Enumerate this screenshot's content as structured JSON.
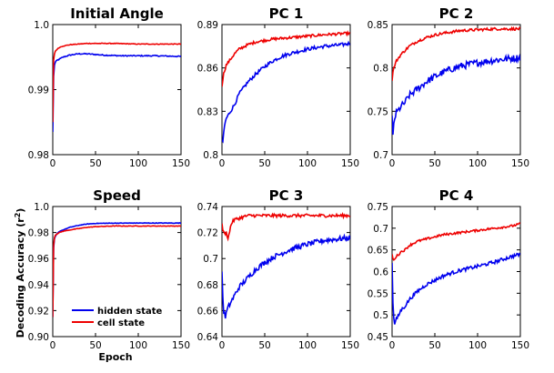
{
  "figure": {
    "ylabel": "Decoding Accuracy (r",
    "ylabel_sup": "2",
    "ylabel_end": ")",
    "xlabel": "Epoch"
  },
  "legend": {
    "placement": "lower-left of Speed panel",
    "entries": [
      {
        "label": "hidden state",
        "color": "#0000ee"
      },
      {
        "label": "cell state",
        "color": "#ee0000"
      }
    ]
  },
  "chart_data": [
    {
      "type": "line",
      "title": "Initial Angle",
      "xlim": [
        0,
        150
      ],
      "ylim": [
        0.98,
        1.0
      ],
      "xticks": [
        0,
        50,
        100,
        150
      ],
      "yticks": [
        0.98,
        0.99,
        1.0
      ],
      "yticklabels": [
        "0.98",
        "0.99",
        "1.0"
      ],
      "series": [
        {
          "name": "hidden state",
          "color": "#0000ee",
          "noise": 8e-05,
          "x": [
            0,
            1,
            2,
            3,
            5,
            8,
            12,
            20,
            30,
            40,
            50,
            60,
            80,
            100,
            120,
            150
          ],
          "y": [
            0.9835,
            0.992,
            0.9938,
            0.9942,
            0.9945,
            0.9947,
            0.995,
            0.9953,
            0.9955,
            0.9955,
            0.9954,
            0.9953,
            0.9952,
            0.9952,
            0.9952,
            0.9951
          ]
        },
        {
          "name": "cell state",
          "color": "#ee0000",
          "noise": 5e-05,
          "x": [
            0,
            1,
            2,
            3,
            5,
            8,
            12,
            20,
            30,
            40,
            50,
            70,
            100,
            150
          ],
          "y": [
            0.985,
            0.9945,
            0.9955,
            0.9959,
            0.9962,
            0.9965,
            0.9967,
            0.9969,
            0.997,
            0.9971,
            0.9971,
            0.9971,
            0.997,
            0.997
          ]
        }
      ]
    },
    {
      "type": "line",
      "title": "PC 1",
      "xlim": [
        0,
        150
      ],
      "ylim": [
        0.8,
        0.89
      ],
      "xticks": [
        0,
        50,
        100,
        150
      ],
      "yticks": [
        0.8,
        0.83,
        0.86,
        0.89
      ],
      "yticklabels": [
        "0.8",
        "0.83",
        "0.86",
        "0.89"
      ],
      "series": [
        {
          "name": "hidden state",
          "color": "#0000ee",
          "noise": 0.0012,
          "x": [
            0,
            1,
            2,
            3,
            5,
            8,
            10,
            15,
            20,
            30,
            40,
            50,
            60,
            70,
            80,
            100,
            120,
            140,
            150
          ],
          "y": [
            0.81,
            0.808,
            0.815,
            0.82,
            0.825,
            0.828,
            0.83,
            0.835,
            0.842,
            0.85,
            0.856,
            0.861,
            0.865,
            0.868,
            0.87,
            0.873,
            0.875,
            0.876,
            0.877
          ]
        },
        {
          "name": "cell state",
          "color": "#ee0000",
          "noise": 0.0009,
          "x": [
            0,
            1,
            2,
            5,
            10,
            15,
            20,
            30,
            40,
            50,
            60,
            80,
            100,
            120,
            150
          ],
          "y": [
            0.847,
            0.852,
            0.856,
            0.862,
            0.866,
            0.87,
            0.873,
            0.876,
            0.878,
            0.879,
            0.88,
            0.881,
            0.882,
            0.883,
            0.884
          ]
        }
      ]
    },
    {
      "type": "line",
      "title": "PC 2",
      "xlim": [
        0,
        150
      ],
      "ylim": [
        0.7,
        0.85
      ],
      "xticks": [
        0,
        50,
        100,
        150
      ],
      "yticks": [
        0.7,
        0.75,
        0.8,
        0.85
      ],
      "yticklabels": [
        "0.7",
        "0.75",
        "0.8",
        "0.85"
      ],
      "series": [
        {
          "name": "hidden state",
          "color": "#0000ee",
          "noise": 0.004,
          "x": [
            0,
            1,
            2,
            3,
            5,
            8,
            10,
            15,
            20,
            30,
            40,
            50,
            60,
            70,
            80,
            100,
            120,
            140,
            150
          ],
          "y": [
            0.745,
            0.72,
            0.735,
            0.742,
            0.748,
            0.752,
            0.755,
            0.76,
            0.768,
            0.776,
            0.784,
            0.79,
            0.795,
            0.799,
            0.802,
            0.806,
            0.809,
            0.811,
            0.812
          ]
        },
        {
          "name": "cell state",
          "color": "#ee0000",
          "noise": 0.0015,
          "x": [
            0,
            1,
            2,
            5,
            10,
            15,
            20,
            30,
            40,
            50,
            60,
            80,
            100,
            120,
            150
          ],
          "y": [
            0.785,
            0.795,
            0.8,
            0.808,
            0.815,
            0.82,
            0.825,
            0.831,
            0.835,
            0.838,
            0.84,
            0.843,
            0.844,
            0.845,
            0.845
          ]
        }
      ]
    },
    {
      "type": "line",
      "title": "Speed",
      "xlim": [
        0,
        150
      ],
      "ylim": [
        0.9,
        1.0
      ],
      "xticks": [
        0,
        50,
        100,
        150
      ],
      "yticks": [
        0.9,
        0.92,
        0.94,
        0.96,
        0.98,
        1.0
      ],
      "yticklabels": [
        "0.90",
        "0.92",
        "0.94",
        "0.96",
        "0.98",
        "1.0"
      ],
      "series": [
        {
          "name": "hidden state",
          "color": "#0000ee",
          "noise": 0.0002,
          "x": [
            0,
            1,
            2,
            3,
            5,
            8,
            12,
            20,
            30,
            40,
            50,
            70,
            100,
            150
          ],
          "y": [
            0.915,
            0.968,
            0.975,
            0.977,
            0.979,
            0.981,
            0.982,
            0.984,
            0.9855,
            0.9865,
            0.987,
            0.9872,
            0.9873,
            0.9873
          ]
        },
        {
          "name": "cell state",
          "color": "#ee0000",
          "noise": 0.0002,
          "x": [
            0,
            1,
            2,
            3,
            5,
            8,
            12,
            20,
            30,
            40,
            50,
            70,
            100,
            150
          ],
          "y": [
            0.915,
            0.97,
            0.976,
            0.978,
            0.979,
            0.98,
            0.981,
            0.982,
            0.983,
            0.984,
            0.9845,
            0.985,
            0.985,
            0.985
          ]
        }
      ]
    },
    {
      "type": "line",
      "title": "PC 3",
      "xlim": [
        0,
        150
      ],
      "ylim": [
        0.64,
        0.74
      ],
      "xticks": [
        0,
        50,
        100,
        150
      ],
      "yticks": [
        0.64,
        0.66,
        0.68,
        0.7,
        0.72,
        0.74
      ],
      "yticklabels": [
        "0.64",
        "0.66",
        "0.68",
        "0.7",
        "0.72",
        "0.74"
      ],
      "series": [
        {
          "name": "hidden state",
          "color": "#0000ee",
          "noise": 0.002,
          "x": [
            0,
            1,
            2,
            3,
            4,
            5,
            7,
            10,
            15,
            20,
            30,
            40,
            50,
            60,
            80,
            100,
            120,
            150
          ],
          "y": [
            0.69,
            0.67,
            0.66,
            0.657,
            0.655,
            0.658,
            0.662,
            0.666,
            0.672,
            0.678,
            0.685,
            0.692,
            0.697,
            0.701,
            0.707,
            0.711,
            0.714,
            0.716
          ]
        },
        {
          "name": "cell state",
          "color": "#ee0000",
          "noise": 0.0012,
          "x": [
            0,
            1,
            2,
            3,
            5,
            7,
            9,
            10,
            12,
            15,
            20,
            30,
            50,
            80,
            100,
            150
          ],
          "y": [
            0.727,
            0.722,
            0.72,
            0.719,
            0.72,
            0.716,
            0.72,
            0.725,
            0.728,
            0.73,
            0.731,
            0.733,
            0.733,
            0.733,
            0.733,
            0.733
          ]
        }
      ]
    },
    {
      "type": "line",
      "title": "PC 4",
      "xlim": [
        0,
        150
      ],
      "ylim": [
        0.45,
        0.75
      ],
      "xticks": [
        0,
        50,
        100,
        150
      ],
      "yticks": [
        0.45,
        0.5,
        0.55,
        0.6,
        0.65,
        0.7,
        0.75
      ],
      "yticklabels": [
        "0.45",
        "0.5",
        "0.55",
        "0.6",
        "0.65",
        "0.7",
        "0.75"
      ],
      "series": [
        {
          "name": "hidden state",
          "color": "#0000ee",
          "noise": 0.004,
          "x": [
            0,
            1,
            2,
            3,
            5,
            8,
            10,
            15,
            20,
            30,
            40,
            50,
            60,
            70,
            80,
            100,
            120,
            140,
            150
          ],
          "y": [
            0.62,
            0.53,
            0.49,
            0.48,
            0.49,
            0.5,
            0.51,
            0.52,
            0.535,
            0.555,
            0.57,
            0.58,
            0.59,
            0.597,
            0.603,
            0.612,
            0.622,
            0.635,
            0.64
          ]
        },
        {
          "name": "cell state",
          "color": "#ee0000",
          "noise": 0.0025,
          "x": [
            0,
            1,
            2,
            3,
            5,
            8,
            10,
            15,
            20,
            30,
            40,
            50,
            60,
            80,
            100,
            120,
            140,
            150
          ],
          "y": [
            0.64,
            0.63,
            0.625,
            0.63,
            0.635,
            0.64,
            0.645,
            0.65,
            0.66,
            0.67,
            0.675,
            0.68,
            0.685,
            0.69,
            0.695,
            0.7,
            0.705,
            0.71
          ]
        }
      ]
    }
  ]
}
